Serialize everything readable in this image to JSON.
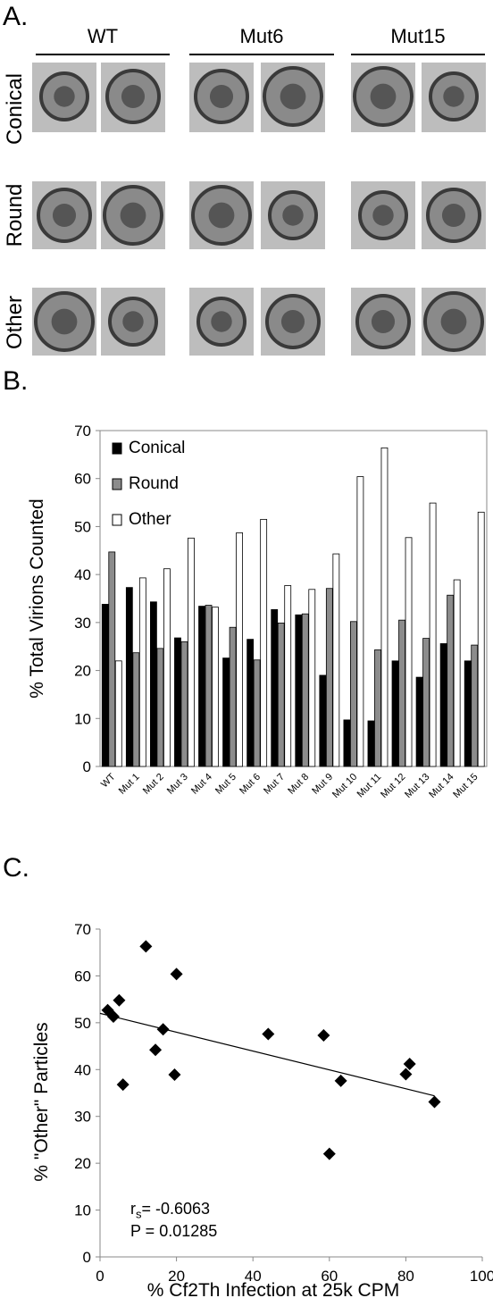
{
  "panel_a": {
    "letter": "A.",
    "groups": [
      "WT",
      "Mut6",
      "Mut15"
    ],
    "rows": [
      "Conical",
      "Round",
      "Other"
    ]
  },
  "panel_b": {
    "letter": "B."
  },
  "panel_c": {
    "letter": "C.",
    "stat_r_main": "r",
    "stat_r_sub": "s",
    "stat_r_value": "= -0.6063",
    "stat_p": "P = 0.01285"
  },
  "chart_data": [
    {
      "type": "bar",
      "ylabel": "% Total Virions Counted",
      "xlabel": "",
      "ylim": [
        0,
        70
      ],
      "yticks": [
        0,
        10,
        20,
        30,
        40,
        50,
        60,
        70
      ],
      "legend_position": "top-left",
      "categories": [
        "WT",
        "Mut 1",
        "Mut 2",
        "Mut 3",
        "Mut 4",
        "Mut 5",
        "Mut 6",
        "Mut 7",
        "Mut 8",
        "Mut 9",
        "Mut 10",
        "Mut 11",
        "Mut 12",
        "Mut 13",
        "Mut 14",
        "Mut 15"
      ],
      "series": [
        {
          "name": "Conical",
          "color": "#000000",
          "values": [
            33.8,
            37.3,
            34.3,
            26.8,
            33.4,
            22.6,
            26.5,
            32.7,
            31.6,
            19.0,
            9.7,
            9.5,
            22.0,
            18.6,
            25.6,
            22.0
          ]
        },
        {
          "name": "Round",
          "color": "#8c8c8c",
          "values": [
            44.7,
            23.7,
            24.6,
            26.0,
            33.6,
            29.0,
            22.2,
            29.9,
            31.8,
            37.1,
            30.2,
            24.3,
            30.5,
            26.7,
            35.7,
            25.3
          ]
        },
        {
          "name": "Other",
          "color": "#ffffff",
          "values": [
            22.0,
            39.3,
            41.2,
            47.6,
            33.2,
            48.7,
            51.5,
            37.7,
            36.9,
            44.3,
            60.4,
            66.4,
            47.7,
            54.9,
            38.9,
            53.0
          ]
        }
      ]
    },
    {
      "type": "scatter",
      "ylabel": "% \"Other\" Particles",
      "xlabel": "% Cf2Th Infection at 25k CPM",
      "xlim": [
        0,
        100
      ],
      "ylim": [
        0,
        70
      ],
      "xticks": [
        0,
        20,
        40,
        60,
        80,
        100
      ],
      "yticks": [
        0,
        10,
        20,
        30,
        40,
        50,
        60,
        70
      ],
      "points": [
        {
          "x": 2,
          "y": 52.7
        },
        {
          "x": 3.5,
          "y": 51.3
        },
        {
          "x": 5,
          "y": 54.8
        },
        {
          "x": 6,
          "y": 36.8
        },
        {
          "x": 12,
          "y": 66.3
        },
        {
          "x": 14.5,
          "y": 44.2
        },
        {
          "x": 16.5,
          "y": 48.6
        },
        {
          "x": 19.5,
          "y": 38.9
        },
        {
          "x": 20,
          "y": 60.4
        },
        {
          "x": 44,
          "y": 47.6
        },
        {
          "x": 58.5,
          "y": 47.3
        },
        {
          "x": 60,
          "y": 22.0
        },
        {
          "x": 63,
          "y": 37.6
        },
        {
          "x": 80,
          "y": 39.0
        },
        {
          "x": 81,
          "y": 41.2
        },
        {
          "x": 87.5,
          "y": 33.1
        }
      ],
      "trendline": {
        "x": [
          0,
          87.5
        ],
        "y": [
          52.0,
          34.4
        ]
      }
    }
  ]
}
